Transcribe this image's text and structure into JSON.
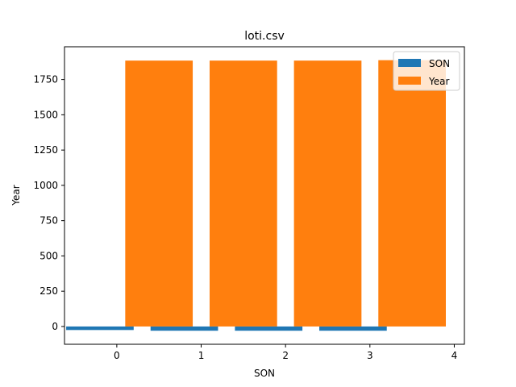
{
  "chart_data": {
    "type": "bar",
    "title": "loti.csv",
    "xlabel": "SON",
    "ylabel": "Year",
    "x": [
      0,
      1,
      2,
      3
    ],
    "series": [
      {
        "name": "SON",
        "offset": -0.2,
        "values": [
          -25,
          -30,
          -30,
          -30
        ],
        "color": "#1f77b4"
      },
      {
        "name": "Year",
        "offset": 0.5,
        "values": [
          1884,
          1884,
          1884,
          1887
        ],
        "color": "#ff7f0e"
      }
    ],
    "bar_width": 0.8,
    "xlim": [
      -0.62,
      4.12
    ],
    "ylim": [
      -126,
      1982
    ],
    "xticks": [
      0,
      1,
      2,
      3,
      4
    ],
    "yticks": [
      0,
      250,
      500,
      750,
      1000,
      1250,
      1500,
      1750
    ],
    "grid": false,
    "legend_position": "top-right"
  }
}
